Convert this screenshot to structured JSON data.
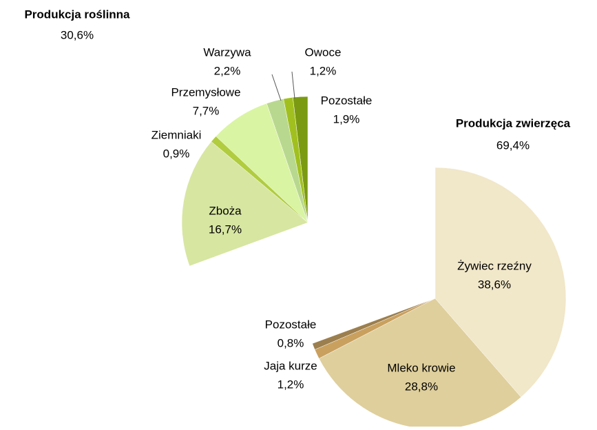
{
  "chart_data": {
    "type": "pie",
    "series": [
      {
        "name": "Produkcja zwierzęca",
        "total": 69.4,
        "total_label": "69,4%",
        "categories": [
          "Żywiec rzeźny",
          "Mleko krowie",
          "Jaja kurze",
          "Pozostałe"
        ],
        "values": [
          38.6,
          28.8,
          1.2,
          0.8
        ],
        "value_labels": [
          "38,6%",
          "28,8%",
          "1,2%",
          "0,8%"
        ],
        "colors": [
          "#f1e7c9",
          "#dfcf9c",
          "#c9a05e",
          "#9c7f4e"
        ]
      },
      {
        "name": "Produkcja roślinna",
        "total": 30.6,
        "total_label": "30,6%",
        "categories": [
          "Zboża",
          "Ziemniaki",
          "Przemysłowe",
          "Warzywa",
          "Owoce",
          "Pozostałe"
        ],
        "values": [
          16.7,
          0.9,
          7.7,
          2.2,
          1.2,
          1.9
        ],
        "value_labels": [
          "16,7%",
          "0,9%",
          "7,7%",
          "2,2%",
          "1,2%",
          "1,9%"
        ],
        "colors": [
          "#d7e6a1",
          "#b1cc3f",
          "#d9f4a2",
          "#b9d88f",
          "#a1c01f",
          "#7b9a12"
        ]
      }
    ]
  }
}
